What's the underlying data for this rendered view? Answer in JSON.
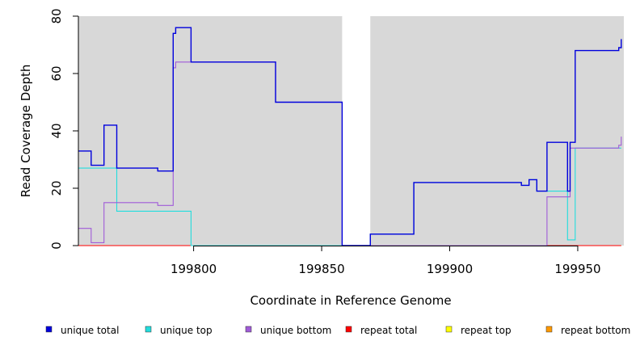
{
  "chart_data": {
    "type": "line",
    "title": "",
    "xlabel": "Coordinate in Reference Genome",
    "ylabel": "Read Coverage Depth",
    "xlim": [
      199755,
      199968
    ],
    "ylim": [
      0,
      80
    ],
    "x_ticks": [
      199800,
      199850,
      199900,
      199950
    ],
    "x_tick_labels": [
      "199800",
      "199850",
      "199900",
      "199950"
    ],
    "y_ticks": [
      0,
      20,
      40,
      60,
      80
    ],
    "y_tick_labels": [
      "0",
      "20",
      "40",
      "60",
      "80"
    ],
    "background_color": "#d8d8d8",
    "gap_region": [
      199858,
      199869
    ],
    "legend_position": "bottom",
    "series": [
      {
        "name": "unique total",
        "color": "#0000dd",
        "points": [
          [
            199755,
            33
          ],
          [
            199760,
            33
          ],
          [
            199760,
            28
          ],
          [
            199765,
            28
          ],
          [
            199765,
            42
          ],
          [
            199770,
            42
          ],
          [
            199770,
            27
          ],
          [
            199786,
            27
          ],
          [
            199786,
            26
          ],
          [
            199792,
            26
          ],
          [
            199792,
            74
          ],
          [
            199793,
            74
          ],
          [
            199793,
            76
          ],
          [
            199799,
            76
          ],
          [
            199799,
            64
          ],
          [
            199832,
            64
          ],
          [
            199832,
            50
          ],
          [
            199858,
            50
          ],
          [
            199858,
            0
          ],
          [
            199869,
            0
          ],
          [
            199869,
            4
          ],
          [
            199886,
            4
          ],
          [
            199886,
            22
          ],
          [
            199928,
            22
          ],
          [
            199928,
            21
          ],
          [
            199931,
            21
          ],
          [
            199931,
            23
          ],
          [
            199934,
            23
          ],
          [
            199934,
            19
          ],
          [
            199938,
            19
          ],
          [
            199938,
            36
          ],
          [
            199946,
            36
          ],
          [
            199946,
            19
          ],
          [
            199947,
            19
          ],
          [
            199947,
            36
          ],
          [
            199949,
            36
          ],
          [
            199949,
            68
          ],
          [
            199966,
            68
          ],
          [
            199966,
            69
          ],
          [
            199967,
            69
          ],
          [
            199967,
            72
          ]
        ]
      },
      {
        "name": "unique top",
        "color": "#22dddd",
        "points": [
          [
            199755,
            27
          ],
          [
            199770,
            27
          ],
          [
            199770,
            12
          ],
          [
            199799,
            12
          ],
          [
            199799,
            0
          ],
          [
            199858,
            0
          ],
          [
            199869,
            0
          ],
          [
            199869,
            4
          ],
          [
            199886,
            4
          ],
          [
            199886,
            22
          ],
          [
            199928,
            22
          ],
          [
            199928,
            21
          ],
          [
            199931,
            21
          ],
          [
            199931,
            23
          ],
          [
            199934,
            23
          ],
          [
            199934,
            19
          ],
          [
            199946,
            19
          ],
          [
            199946,
            2
          ],
          [
            199949,
            2
          ],
          [
            199949,
            34
          ],
          [
            199967,
            34
          ]
        ]
      },
      {
        "name": "unique bottom",
        "color": "#a05bd8",
        "points": [
          [
            199755,
            6
          ],
          [
            199760,
            6
          ],
          [
            199760,
            1
          ],
          [
            199765,
            1
          ],
          [
            199765,
            15
          ],
          [
            199786,
            15
          ],
          [
            199786,
            14
          ],
          [
            199792,
            14
          ],
          [
            199792,
            62
          ],
          [
            199793,
            62
          ],
          [
            199793,
            64
          ],
          [
            199832,
            64
          ],
          [
            199832,
            50
          ],
          [
            199858,
            50
          ],
          [
            199858,
            0
          ],
          [
            199938,
            0
          ],
          [
            199938,
            17
          ],
          [
            199947,
            17
          ],
          [
            199947,
            34
          ],
          [
            199966,
            34
          ],
          [
            199966,
            35
          ],
          [
            199967,
            35
          ],
          [
            199967,
            38
          ]
        ]
      },
      {
        "name": "repeat total",
        "color": "#ff0000",
        "points": [
          [
            199755,
            0
          ],
          [
            199858,
            0
          ],
          [
            199869,
            0
          ],
          [
            199967,
            0
          ]
        ]
      },
      {
        "name": "repeat top",
        "color": "#ffff00",
        "points": [
          [
            199755,
            0
          ],
          [
            199858,
            0
          ],
          [
            199869,
            0
          ],
          [
            199967,
            0
          ]
        ]
      },
      {
        "name": "repeat bottom",
        "color": "#ff9900",
        "points": [
          [
            199755,
            0
          ],
          [
            199858,
            0
          ],
          [
            199869,
            0
          ],
          [
            199967,
            0
          ]
        ]
      }
    ]
  }
}
